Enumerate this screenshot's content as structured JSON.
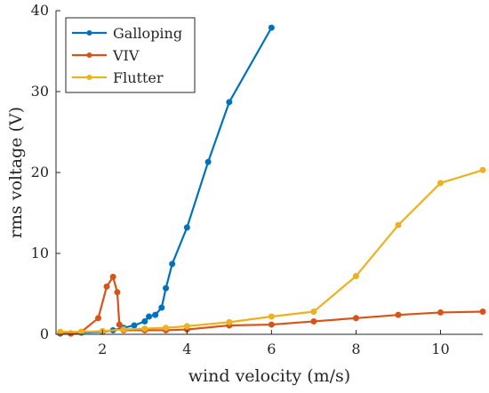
{
  "chart_data": {
    "type": "line",
    "xlabel": "wind velocity (m/s)",
    "ylabel": "rms voltage (V)",
    "xlim": [
      0.9,
      11
    ],
    "ylim": [
      0,
      40
    ],
    "xticks": [
      2,
      4,
      6,
      8,
      10
    ],
    "yticks": [
      0,
      10,
      20,
      30,
      40
    ],
    "grid": false,
    "legend_position": "top-left",
    "series": [
      {
        "name": "Galloping",
        "color": "#0072BD",
        "x": [
          1,
          1.25,
          1.5,
          2,
          2.25,
          2.5,
          2.75,
          3,
          3.1,
          3.25,
          3.4,
          3.5,
          3.65,
          4,
          4.5,
          5,
          6
        ],
        "y": [
          0.1,
          0.1,
          0.2,
          0.3,
          0.5,
          0.8,
          1.1,
          1.6,
          2.2,
          2.4,
          3.3,
          5.7,
          8.7,
          13.2,
          21.3,
          28.7,
          37.9
        ]
      },
      {
        "name": "VIV",
        "color": "#D95319",
        "x": [
          1,
          1.25,
          1.5,
          1.9,
          2.1,
          2.25,
          2.35,
          2.4,
          2.5,
          3,
          3.5,
          4,
          5,
          6,
          7,
          8,
          9,
          10,
          11
        ],
        "y": [
          0.2,
          0.1,
          0.3,
          2.0,
          5.9,
          7.1,
          5.2,
          1.2,
          0.5,
          0.5,
          0.5,
          0.6,
          1.1,
          1.2,
          1.6,
          2.0,
          2.4,
          2.7,
          2.8
        ]
      },
      {
        "name": "Flutter",
        "color": "#EDB120",
        "x": [
          1,
          1.5,
          2,
          2.5,
          3,
          3.5,
          4,
          5,
          6,
          7,
          8,
          9,
          10,
          11
        ],
        "y": [
          0.3,
          0.3,
          0.4,
          0.6,
          0.7,
          0.8,
          1.0,
          1.5,
          2.2,
          2.8,
          7.2,
          13.5,
          18.7,
          20.3
        ]
      }
    ]
  }
}
